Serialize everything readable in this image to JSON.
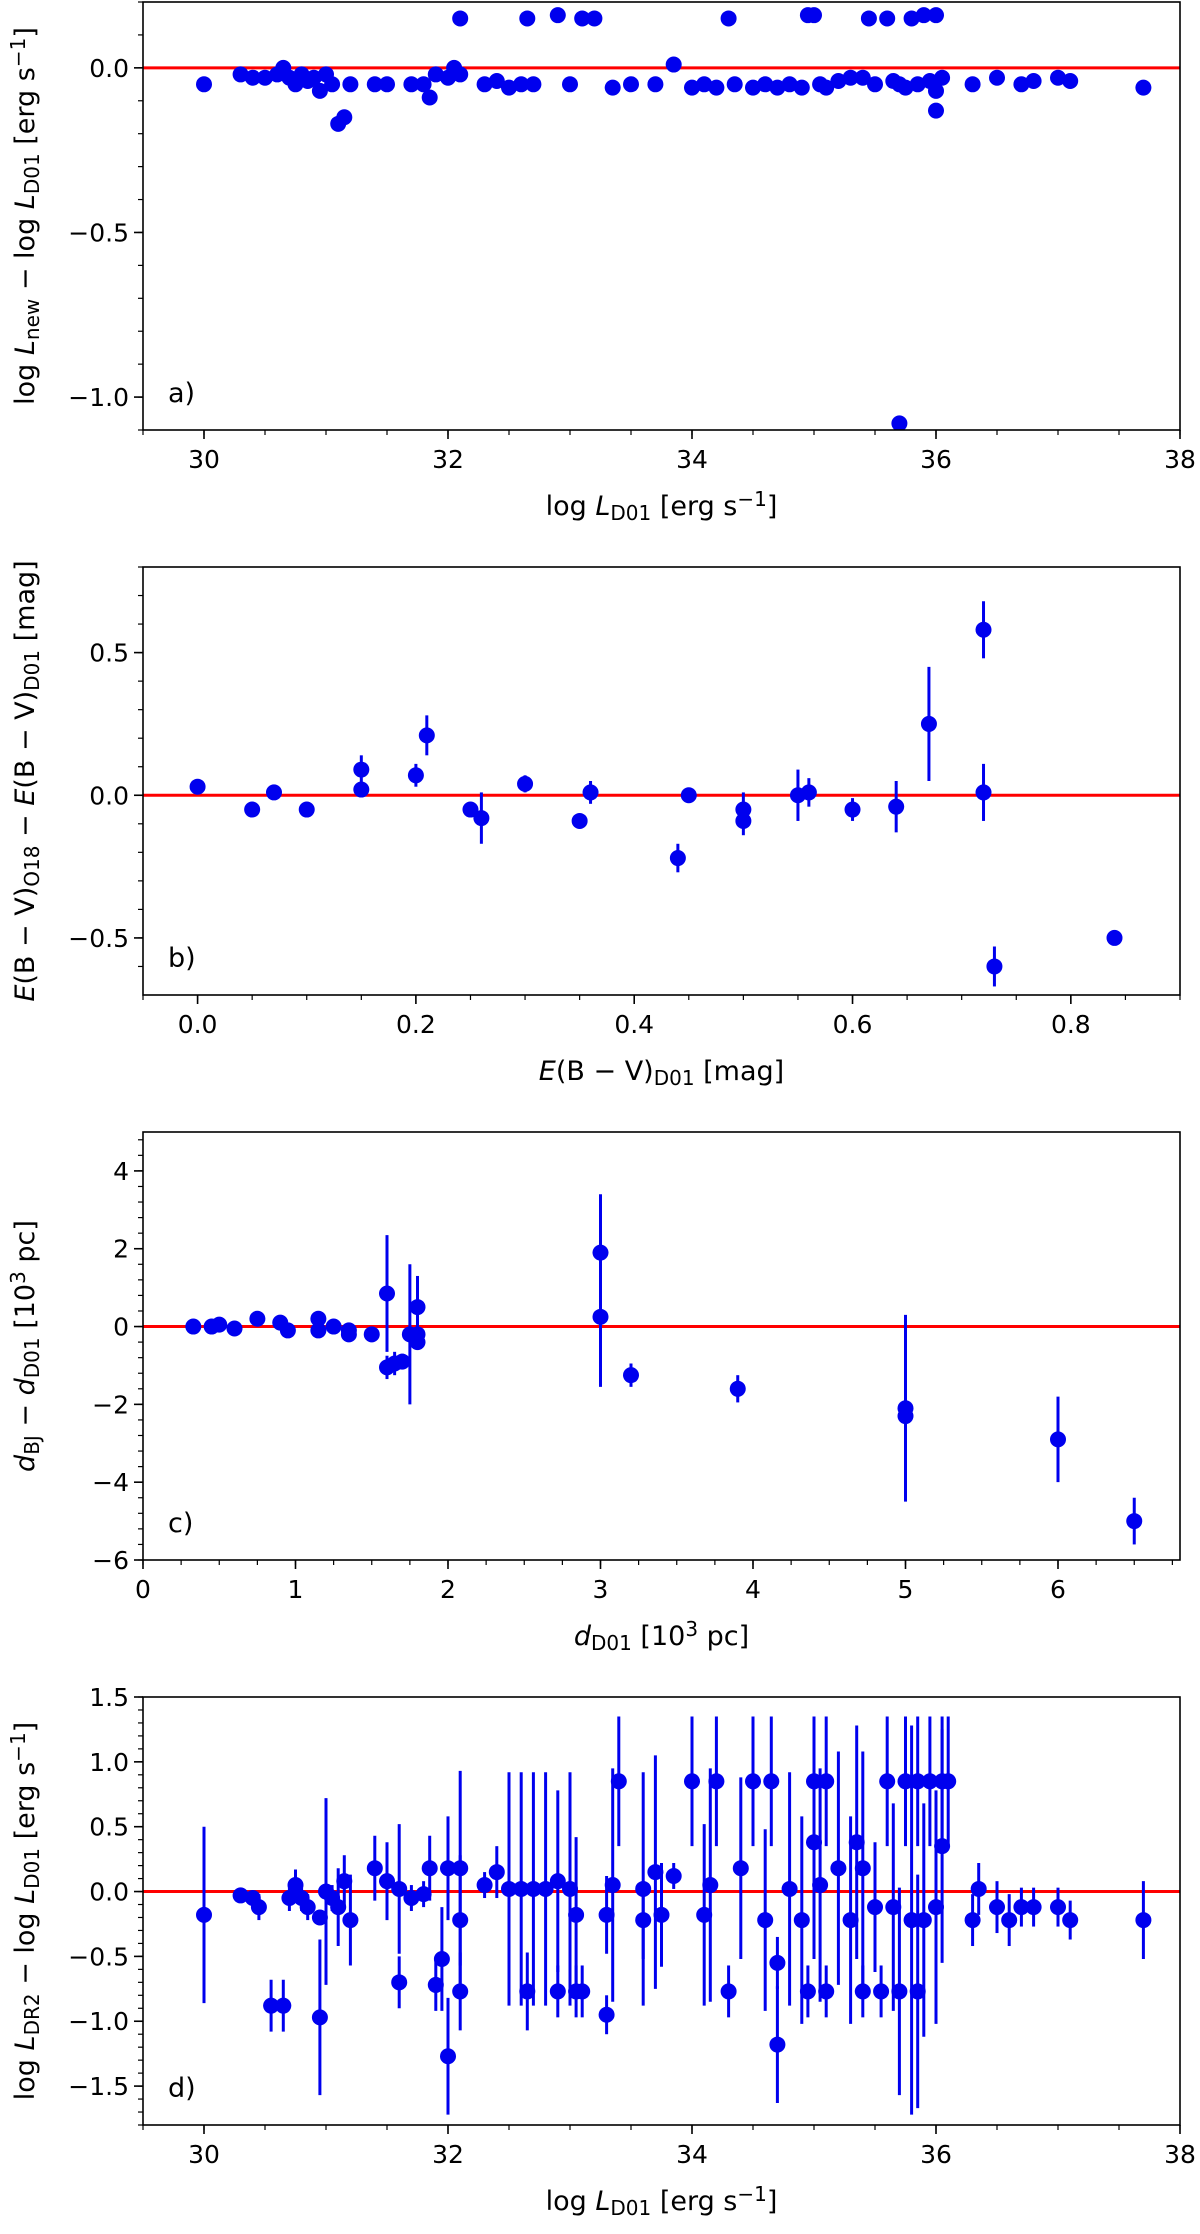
{
  "colors": {
    "points": "#0000ee",
    "reference_line": "#ff0000"
  },
  "chart_data": [
    {
      "type": "scatter",
      "panel_label": "a)",
      "xlabel": {
        "pre": "log ",
        "var": "L",
        "sub": "D01",
        "post": " [erg s",
        "sup": "−1",
        "end": "]"
      },
      "ylabel": {
        "pre": "log ",
        "var": "L",
        "sub": "new",
        "mid": " − log ",
        "var2": "L",
        "sub2": "D01",
        "post": " [erg s",
        "sup": "−1",
        "end": "]"
      },
      "xlim": [
        29.5,
        38
      ],
      "ylim": [
        -1.1,
        0.2
      ],
      "x_ticks": [
        30,
        32,
        34,
        36,
        38
      ],
      "y_ticks": [
        0.0,
        -0.5,
        -1.0
      ],
      "x_tick_labels": [
        "30",
        "32",
        "34",
        "36",
        "38"
      ],
      "y_tick_labels": [
        "0.0",
        "−0.5",
        "−1.0"
      ],
      "reference_y": 0,
      "points": [
        [
          30.0,
          -0.05
        ],
        [
          30.3,
          -0.02
        ],
        [
          30.4,
          -0.03
        ],
        [
          30.5,
          -0.03
        ],
        [
          30.6,
          -0.02
        ],
        [
          30.65,
          0.0
        ],
        [
          30.7,
          -0.03
        ],
        [
          30.75,
          -0.05
        ],
        [
          30.8,
          -0.02
        ],
        [
          30.85,
          -0.04
        ],
        [
          30.9,
          -0.03
        ],
        [
          30.95,
          -0.07
        ],
        [
          31.0,
          -0.02
        ],
        [
          31.05,
          -0.05
        ],
        [
          31.1,
          -0.17
        ],
        [
          31.15,
          -0.15
        ],
        [
          31.2,
          -0.05
        ],
        [
          31.4,
          -0.05
        ],
        [
          31.5,
          -0.05
        ],
        [
          31.7,
          -0.05
        ],
        [
          31.8,
          -0.05
        ],
        [
          31.85,
          -0.09
        ],
        [
          31.9,
          -0.02
        ],
        [
          32.0,
          -0.03
        ],
        [
          32.1,
          -0.02
        ],
        [
          32.05,
          0.0
        ],
        [
          32.1,
          0.15
        ],
        [
          32.3,
          -0.05
        ],
        [
          32.4,
          -0.04
        ],
        [
          32.5,
          -0.06
        ],
        [
          32.6,
          -0.05
        ],
        [
          32.65,
          0.15
        ],
        [
          32.7,
          -0.05
        ],
        [
          32.9,
          0.16
        ],
        [
          33.0,
          -0.05
        ],
        [
          33.1,
          0.15
        ],
        [
          33.2,
          0.15
        ],
        [
          33.35,
          -0.06
        ],
        [
          33.5,
          -0.05
        ],
        [
          33.7,
          -0.05
        ],
        [
          33.85,
          0.01
        ],
        [
          34.0,
          -0.06
        ],
        [
          34.1,
          -0.05
        ],
        [
          34.2,
          -0.06
        ],
        [
          34.35,
          -0.05
        ],
        [
          34.3,
          0.15
        ],
        [
          34.5,
          -0.06
        ],
        [
          34.6,
          -0.05
        ],
        [
          34.7,
          -0.06
        ],
        [
          34.8,
          -0.05
        ],
        [
          34.9,
          -0.06
        ],
        [
          34.95,
          0.16
        ],
        [
          35.0,
          0.16
        ],
        [
          35.05,
          -0.05
        ],
        [
          35.1,
          -0.06
        ],
        [
          35.2,
          -0.04
        ],
        [
          35.3,
          -0.03
        ],
        [
          35.4,
          -0.03
        ],
        [
          35.45,
          0.15
        ],
        [
          35.5,
          -0.05
        ],
        [
          35.6,
          0.15
        ],
        [
          35.65,
          -0.04
        ],
        [
          35.7,
          -0.05
        ],
        [
          35.75,
          -0.06
        ],
        [
          35.8,
          0.15
        ],
        [
          35.85,
          -0.05
        ],
        [
          35.9,
          0.16
        ],
        [
          35.95,
          -0.04
        ],
        [
          36.0,
          0.16
        ],
        [
          36.0,
          -0.07
        ],
        [
          36.05,
          -0.03
        ],
        [
          36.0,
          -0.13
        ],
        [
          36.3,
          -0.05
        ],
        [
          36.5,
          -0.03
        ],
        [
          36.7,
          -0.05
        ],
        [
          36.8,
          -0.04
        ],
        [
          37.0,
          -0.03
        ],
        [
          37.1,
          -0.04
        ],
        [
          37.7,
          -0.06
        ],
        [
          35.7,
          -1.08
        ]
      ]
    },
    {
      "type": "scatter",
      "panel_label": "b)",
      "xlabel": {
        "pre": "",
        "var": "E",
        "paren": "(B − V)",
        "sub": "D01",
        "post": " [mag]"
      },
      "ylabel": {
        "pre": "",
        "var": "E",
        "paren": "(B − V)",
        "sub": "O18",
        "mid": " − ",
        "var2": "E",
        "paren2": "(B − V)",
        "sub2": "D01",
        "post": " [mag]"
      },
      "xlim": [
        -0.05,
        0.9
      ],
      "ylim": [
        -0.7,
        0.8
      ],
      "x_ticks": [
        0.0,
        0.2,
        0.4,
        0.6,
        0.8
      ],
      "y_ticks": [
        0.5,
        0.0,
        -0.5
      ],
      "x_tick_labels": [
        "0.0",
        "0.2",
        "0.4",
        "0.6",
        "0.8"
      ],
      "y_tick_labels": [
        "0.5",
        "0.0",
        "−0.5"
      ],
      "reference_y": 0,
      "points": [
        [
          0.0,
          0.03,
          0.0
        ],
        [
          0.05,
          -0.05,
          0.0
        ],
        [
          0.07,
          0.01,
          0.0
        ],
        [
          0.1,
          -0.05,
          0.0
        ],
        [
          0.15,
          0.09,
          0.05
        ],
        [
          0.15,
          0.02,
          0.0
        ],
        [
          0.2,
          0.07,
          0.04
        ],
        [
          0.21,
          0.21,
          0.07
        ],
        [
          0.25,
          -0.05,
          0.0
        ],
        [
          0.26,
          -0.08,
          0.09
        ],
        [
          0.3,
          0.04,
          0.03
        ],
        [
          0.35,
          -0.09,
          0.0
        ],
        [
          0.36,
          0.01,
          0.04
        ],
        [
          0.44,
          -0.22,
          0.05
        ],
        [
          0.45,
          0.0,
          0.0
        ],
        [
          0.5,
          -0.05,
          0.06
        ],
        [
          0.5,
          -0.09,
          0.05
        ],
        [
          0.55,
          0.0,
          0.09
        ],
        [
          0.56,
          0.01,
          0.05
        ],
        [
          0.6,
          -0.05,
          0.04
        ],
        [
          0.64,
          -0.04,
          0.09
        ],
        [
          0.67,
          0.25,
          0.2
        ],
        [
          0.72,
          0.58,
          0.1
        ],
        [
          0.72,
          0.01,
          0.1
        ],
        [
          0.73,
          -0.6,
          0.07
        ],
        [
          0.84,
          -0.5,
          0.0
        ]
      ]
    },
    {
      "type": "scatter",
      "panel_label": "c)",
      "xlabel": {
        "pre": "",
        "var": "d",
        "sub": "D01",
        "post": " [10",
        "sup": "3",
        "end": " pc]"
      },
      "ylabel": {
        "pre": "",
        "var": "d",
        "sub": "BJ",
        "mid": " − ",
        "var2": "d",
        "sub2": "D01",
        "post": " [10",
        "sup": "3",
        "end": " pc]"
      },
      "xlim": [
        0,
        6.8
      ],
      "ylim": [
        -6,
        5
      ],
      "x_ticks": [
        0,
        1,
        2,
        3,
        4,
        5,
        6
      ],
      "y_ticks": [
        4,
        2,
        0,
        -2,
        -4,
        -6
      ],
      "x_tick_labels": [
        "0",
        "1",
        "2",
        "3",
        "4",
        "5",
        "6"
      ],
      "y_tick_labels": [
        "4",
        "2",
        "0",
        "−2",
        "−4",
        "−6"
      ],
      "reference_y": 0,
      "points": [
        [
          0.33,
          0.0,
          0.0
        ],
        [
          0.45,
          0.0,
          0.0
        ],
        [
          0.5,
          0.05,
          0.0
        ],
        [
          0.6,
          -0.05,
          0.0
        ],
        [
          0.75,
          0.2,
          0.0
        ],
        [
          0.9,
          0.1,
          0.0
        ],
        [
          0.95,
          -0.1,
          0.0
        ],
        [
          1.15,
          0.2,
          0.0
        ],
        [
          1.15,
          -0.1,
          0.0
        ],
        [
          1.25,
          0.0,
          0.0
        ],
        [
          1.35,
          -0.1,
          0.0
        ],
        [
          1.35,
          -0.2,
          0.0
        ],
        [
          1.5,
          -0.2,
          0.2
        ],
        [
          1.6,
          0.85,
          1.5
        ],
        [
          1.6,
          -1.05,
          0.3
        ],
        [
          1.65,
          -0.95,
          0.3
        ],
        [
          1.7,
          -0.9,
          0.2
        ],
        [
          1.75,
          -0.2,
          1.8
        ],
        [
          1.8,
          0.5,
          0.8
        ],
        [
          1.8,
          -0.2,
          0.0
        ],
        [
          1.8,
          -0.4,
          0.0
        ],
        [
          3.0,
          1.9,
          1.5
        ],
        [
          3.0,
          0.25,
          1.8
        ],
        [
          3.2,
          -1.25,
          0.3
        ],
        [
          3.9,
          -1.6,
          0.35
        ],
        [
          5.0,
          -2.1,
          2.4
        ],
        [
          5.0,
          -2.3,
          0.9
        ],
        [
          6.0,
          -2.9,
          1.1
        ],
        [
          6.5,
          -5.0,
          0.6
        ]
      ]
    },
    {
      "type": "scatter",
      "panel_label": "d)",
      "xlabel": {
        "pre": "log ",
        "var": "L",
        "sub": "D01",
        "post": " [erg s",
        "sup": "−1",
        "end": "]"
      },
      "ylabel": {
        "pre": "log ",
        "var": "L",
        "sub": "DR2",
        "mid": " − log ",
        "var2": "L",
        "sub2": "D01",
        "post": " [erg s",
        "sup": "−1",
        "end": "]"
      },
      "xlim": [
        29.5,
        38
      ],
      "ylim": [
        -1.8,
        1.5
      ],
      "x_ticks": [
        30,
        32,
        34,
        36,
        38
      ],
      "y_ticks": [
        1.5,
        1.0,
        0.5,
        0.0,
        -0.5,
        -1.0,
        -1.5
      ],
      "x_tick_labels": [
        "30",
        "32",
        "34",
        "36",
        "38"
      ],
      "y_tick_labels": [
        "1.5",
        "1.0",
        "0.5",
        "0.0",
        "−0.5",
        "−1.0",
        "−1.5"
      ],
      "reference_y": 0,
      "points": [
        [
          30.0,
          -0.18,
          0.68
        ],
        [
          30.3,
          -0.03,
          0.05
        ],
        [
          30.4,
          -0.05,
          0.05
        ],
        [
          30.45,
          -0.12,
          0.1
        ],
        [
          30.55,
          -0.88,
          0.2
        ],
        [
          30.65,
          -0.88,
          0.2
        ],
        [
          30.7,
          -0.05,
          0.1
        ],
        [
          30.75,
          0.05,
          0.12
        ],
        [
          30.8,
          -0.05,
          0.1
        ],
        [
          30.85,
          -0.12,
          0.1
        ],
        [
          30.95,
          -0.2,
          0.05
        ],
        [
          30.95,
          -0.97,
          0.6
        ],
        [
          31.0,
          0.0,
          0.72
        ],
        [
          31.05,
          -0.05,
          0.1
        ],
        [
          31.1,
          -0.12,
          0.3
        ],
        [
          31.15,
          0.08,
          0.2
        ],
        [
          31.2,
          -0.22,
          0.35
        ],
        [
          31.4,
          0.18,
          0.25
        ],
        [
          31.5,
          0.08,
          0.3
        ],
        [
          31.6,
          0.02,
          0.5
        ],
        [
          31.6,
          -0.7,
          0.2
        ],
        [
          31.7,
          -0.05,
          0.1
        ],
        [
          31.8,
          -0.02,
          0.1
        ],
        [
          31.85,
          0.18,
          0.25
        ],
        [
          31.9,
          -0.72,
          0.2
        ],
        [
          31.95,
          -0.52,
          0.4
        ],
        [
          32.0,
          0.18,
          0.4
        ],
        [
          32.0,
          -1.27,
          0.45
        ],
        [
          32.1,
          0.18,
          0.75
        ],
        [
          32.1,
          -0.22,
          0.5
        ],
        [
          32.1,
          -0.77,
          0.3
        ],
        [
          32.3,
          0.05,
          0.1
        ],
        [
          32.4,
          0.15,
          0.2
        ],
        [
          32.5,
          0.02,
          0.9
        ],
        [
          32.6,
          0.02,
          0.9
        ],
        [
          32.65,
          -0.77,
          0.3
        ],
        [
          32.7,
          0.02,
          0.9
        ],
        [
          32.8,
          0.02,
          0.9
        ],
        [
          32.9,
          -0.77,
          0.2
        ],
        [
          32.9,
          0.08,
          0.7
        ],
        [
          33.0,
          0.02,
          0.9
        ],
        [
          33.05,
          -0.77,
          0.2
        ],
        [
          33.05,
          -0.18,
          0.6
        ],
        [
          33.1,
          -0.77,
          0.2
        ],
        [
          33.3,
          -0.95,
          0.15
        ],
        [
          33.3,
          -0.18,
          0.3
        ],
        [
          33.35,
          0.05,
          0.9
        ],
        [
          33.4,
          0.85,
          0.5
        ],
        [
          33.6,
          0.02,
          0.9
        ],
        [
          33.6,
          -0.22,
          0.3
        ],
        [
          33.7,
          0.15,
          0.9
        ],
        [
          33.75,
          -0.18,
          0.4
        ],
        [
          33.85,
          0.12,
          0.1
        ],
        [
          34.0,
          0.85,
          0.5
        ],
        [
          34.1,
          -0.18,
          0.7
        ],
        [
          34.15,
          0.05,
          0.9
        ],
        [
          34.2,
          0.85,
          0.5
        ],
        [
          34.3,
          -0.77,
          0.2
        ],
        [
          34.4,
          0.18,
          0.7
        ],
        [
          34.5,
          0.85,
          0.5
        ],
        [
          34.6,
          -0.22,
          0.7
        ],
        [
          34.65,
          0.85,
          0.5
        ],
        [
          34.7,
          -0.55,
          0.2
        ],
        [
          34.7,
          -1.18,
          0.45
        ],
        [
          34.8,
          0.02,
          0.9
        ],
        [
          34.9,
          -0.22,
          0.8
        ],
        [
          34.95,
          -0.77,
          0.2
        ],
        [
          35.0,
          0.85,
          0.5
        ],
        [
          35.0,
          0.38,
          0.9
        ],
        [
          35.05,
          0.05,
          0.9
        ],
        [
          35.1,
          0.85,
          0.5
        ],
        [
          35.1,
          -0.77,
          0.2
        ],
        [
          35.2,
          0.18,
          0.9
        ],
        [
          35.3,
          -0.22,
          0.8
        ],
        [
          35.35,
          0.38,
          0.9
        ],
        [
          35.4,
          0.18,
          0.9
        ],
        [
          35.4,
          -0.77,
          0.2
        ],
        [
          35.5,
          -0.12,
          0.5
        ],
        [
          35.55,
          -0.77,
          0.2
        ],
        [
          35.6,
          0.85,
          0.5
        ],
        [
          35.65,
          -0.12,
          0.8
        ],
        [
          35.7,
          -0.77,
          0.8
        ],
        [
          35.75,
          0.85,
          0.5
        ],
        [
          35.8,
          -0.22,
          1.5
        ],
        [
          35.85,
          0.85,
          0.5
        ],
        [
          35.85,
          -0.77,
          0.9
        ],
        [
          35.9,
          -0.22,
          0.9
        ],
        [
          35.95,
          0.85,
          0.5
        ],
        [
          36.0,
          -0.12,
          0.9
        ],
        [
          36.05,
          0.85,
          0.5
        ],
        [
          36.05,
          0.35,
          0.9
        ],
        [
          36.1,
          0.85,
          0.5
        ],
        [
          36.3,
          -0.22,
          0.2
        ],
        [
          36.35,
          0.02,
          0.2
        ],
        [
          36.5,
          -0.12,
          0.2
        ],
        [
          36.6,
          -0.22,
          0.2
        ],
        [
          36.7,
          -0.12,
          0.15
        ],
        [
          36.8,
          -0.12,
          0.15
        ],
        [
          37.0,
          -0.12,
          0.15
        ],
        [
          37.1,
          -0.22,
          0.15
        ],
        [
          37.7,
          -0.22,
          0.3
        ]
      ]
    }
  ]
}
